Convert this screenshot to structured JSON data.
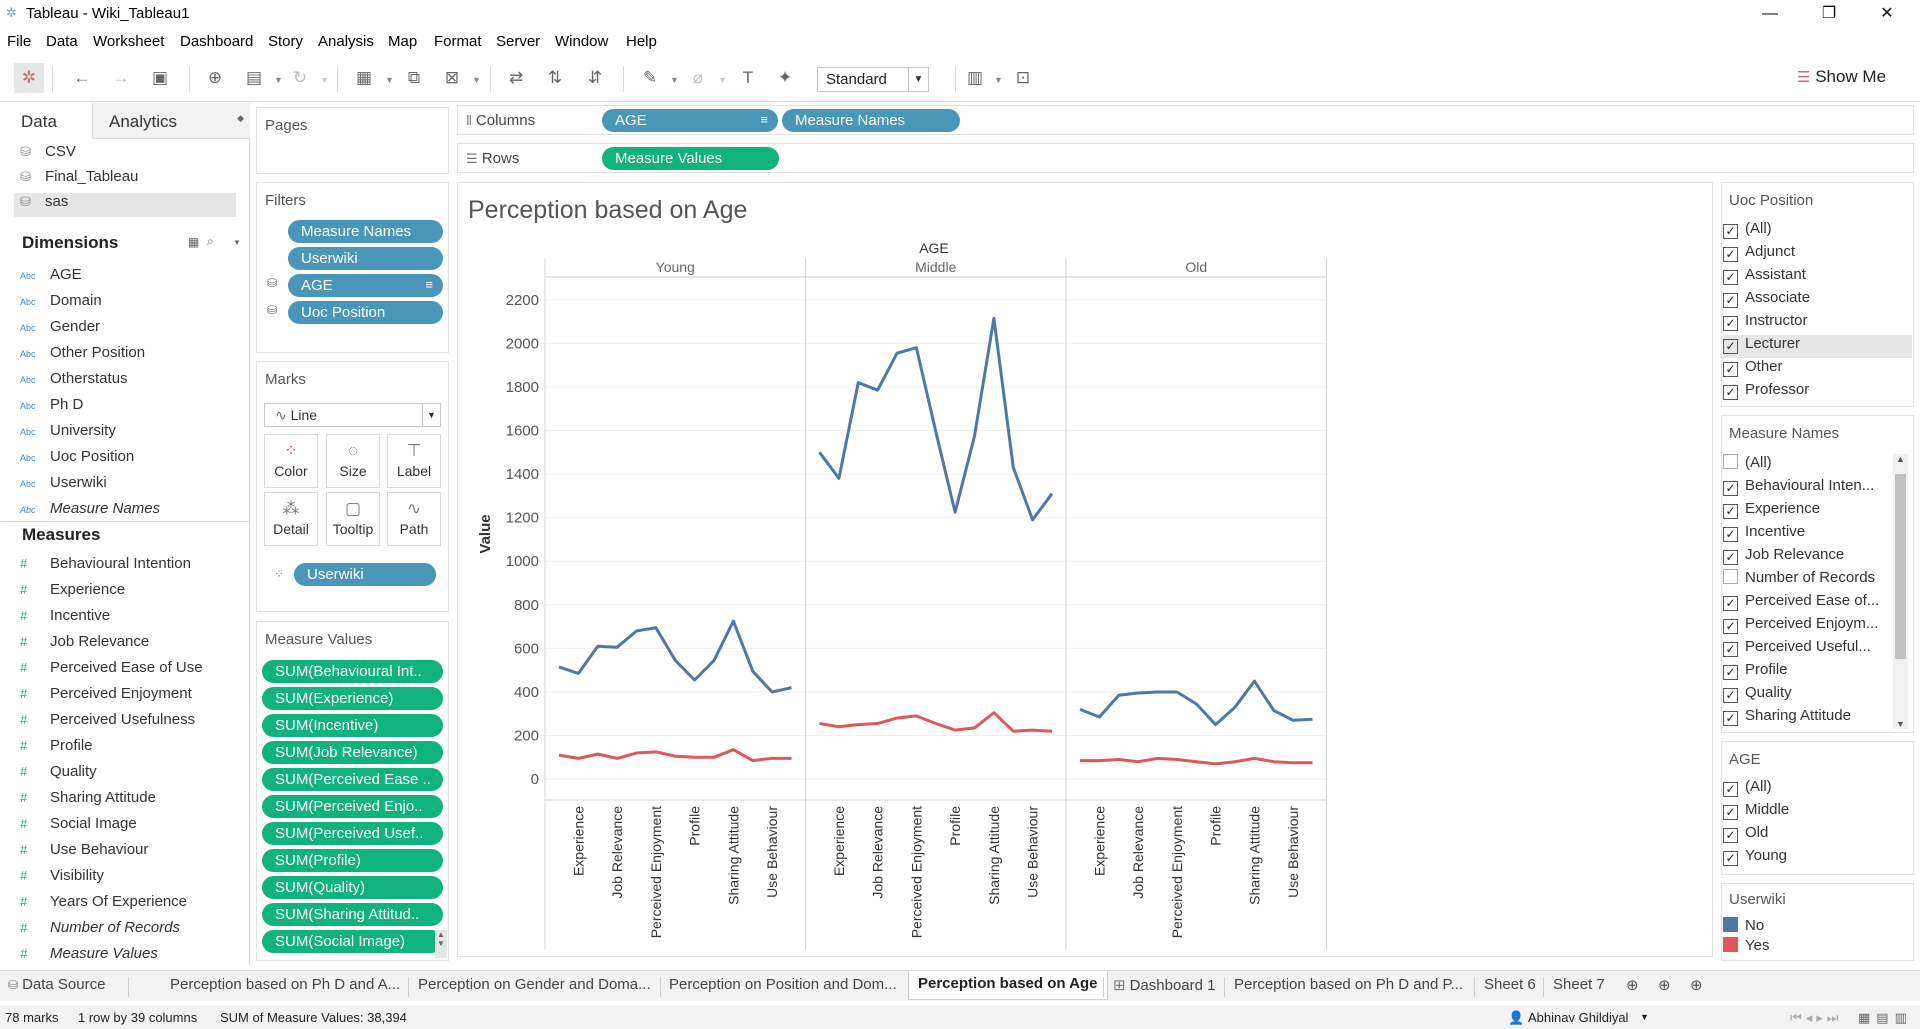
{
  "window": {
    "title": "Tableau - Wiki_Tableau1"
  },
  "menu": [
    "File",
    "Data",
    "Worksheet",
    "Dashboard",
    "Story",
    "Analysis",
    "Map",
    "Format",
    "Server",
    "Window",
    "Help"
  ],
  "toolbar": {
    "fit_select": "Standard",
    "show_me": "Show Me"
  },
  "data_pane": {
    "tabs": [
      "Data",
      "Analytics"
    ],
    "sources": [
      "CSV",
      "Final_Tableau",
      "sas"
    ],
    "dimensions_header": "Dimensions",
    "dimensions": [
      "AGE",
      "Domain",
      "Gender",
      "Other Position",
      "Otherstatus",
      "Ph D",
      "University",
      "Uoc Position",
      "Userwiki",
      "Measure Names"
    ],
    "dim_icon": "Abc",
    "measures_header": "Measures",
    "measures": [
      "Behavioural Intention",
      "Experience",
      "Incentive",
      "Job Relevance",
      "Perceived Ease of Use",
      "Perceived Enjoyment",
      "Perceived Usefulness",
      "Profile",
      "Quality",
      "Sharing Attitude",
      "Social Image",
      "Use Behaviour",
      "Visibility",
      "Years Of Experience",
      "Number of Records",
      "Measure Values"
    ]
  },
  "pages": {
    "header": "Pages"
  },
  "filters": {
    "header": "Filters",
    "pills": [
      "Measure Names",
      "Userwiki",
      "AGE",
      "Uoc Position"
    ]
  },
  "marks": {
    "header": "Marks",
    "type": "Line",
    "buttons": [
      "Color",
      "Size",
      "Label",
      "Detail",
      "Tooltip",
      "Path"
    ],
    "color_pill": "Userwiki"
  },
  "measure_values": {
    "header": "Measure Values",
    "pills": [
      "SUM(Behavioural Int..",
      "SUM(Experience)",
      "SUM(Incentive)",
      "SUM(Job Relevance)",
      "SUM(Perceived Ease ..",
      "SUM(Perceived Enjo..",
      "SUM(Perceived Usef..",
      "SUM(Profile)",
      "SUM(Quality)",
      "SUM(Sharing Attitud..",
      "SUM(Social Image)"
    ]
  },
  "shelves": {
    "columns_label": "Columns",
    "columns": [
      "AGE",
      "Measure Names"
    ],
    "rows_label": "Rows",
    "rows": [
      "Measure Values"
    ]
  },
  "view": {
    "title": "Perception based on Age"
  },
  "chart_data": {
    "type": "line",
    "title": "Perception based on Age",
    "column_header": "AGE",
    "panes": [
      "Young",
      "Middle",
      "Old"
    ],
    "ylabel": "Value",
    "ylim": [
      -50,
      2300
    ],
    "yticks": [
      0,
      200,
      400,
      600,
      800,
      1000,
      1200,
      1400,
      1600,
      1800,
      2000,
      2200
    ],
    "x_tick_labels": [
      "Experience",
      "Job Relevance",
      "Perceived Enjoyment",
      "Profile",
      "Sharing Attitude",
      "Use Behaviour"
    ],
    "points_per_pane": 13,
    "series": [
      {
        "name": "No",
        "color": "#4e79a7",
        "values": {
          "Young": [
            515,
            485,
            610,
            605,
            680,
            695,
            545,
            455,
            545,
            725,
            495,
            400,
            420
          ],
          "Middle": [
            1500,
            1380,
            1820,
            1785,
            1955,
            1980,
            1595,
            1225,
            1575,
            2115,
            1430,
            1190,
            1310
          ],
          "Old": [
            320,
            285,
            385,
            395,
            400,
            400,
            345,
            250,
            330,
            450,
            315,
            270,
            275
          ]
        }
      },
      {
        "name": "Yes",
        "color": "#e15759",
        "values": {
          "Young": [
            110,
            95,
            115,
            95,
            120,
            125,
            105,
            100,
            100,
            135,
            85,
            95,
            95
          ],
          "Middle": [
            255,
            240,
            250,
            255,
            280,
            290,
            255,
            225,
            235,
            305,
            220,
            225,
            220
          ],
          "Old": [
            85,
            85,
            90,
            80,
            95,
            90,
            80,
            70,
            80,
            95,
            80,
            75,
            75
          ]
        }
      }
    ]
  },
  "uoc_position": {
    "header": "Uoc Position",
    "items": [
      {
        "label": "(All)",
        "checked": true
      },
      {
        "label": "Adjunct",
        "checked": true
      },
      {
        "label": "Assistant",
        "checked": true
      },
      {
        "label": "Associate",
        "checked": true
      },
      {
        "label": "Instructor",
        "checked": true
      },
      {
        "label": "Lecturer",
        "checked": true
      },
      {
        "label": "Other",
        "checked": true
      },
      {
        "label": "Professor",
        "checked": true
      }
    ]
  },
  "measure_names_filter": {
    "header": "Measure Names",
    "items": [
      {
        "label": "(All)",
        "checked": false
      },
      {
        "label": "Behavioural Inten...",
        "checked": true
      },
      {
        "label": "Experience",
        "checked": true
      },
      {
        "label": "Incentive",
        "checked": true
      },
      {
        "label": "Job Relevance",
        "checked": true
      },
      {
        "label": "Number of Records",
        "checked": false
      },
      {
        "label": "Perceived Ease of...",
        "checked": true
      },
      {
        "label": "Perceived Enjoym...",
        "checked": true
      },
      {
        "label": "Perceived Useful...",
        "checked": true
      },
      {
        "label": "Profile",
        "checked": true
      },
      {
        "label": "Quality",
        "checked": true
      },
      {
        "label": "Sharing Attitude",
        "checked": true
      }
    ]
  },
  "age_filter": {
    "header": "AGE",
    "items": [
      {
        "label": "(All)",
        "checked": true
      },
      {
        "label": "Middle",
        "checked": true
      },
      {
        "label": "Old",
        "checked": true
      },
      {
        "label": "Young",
        "checked": true
      }
    ]
  },
  "userwiki_legend": {
    "header": "Userwiki",
    "items": [
      {
        "label": "No",
        "color": "#4e79a7"
      },
      {
        "label": "Yes",
        "color": "#e15759"
      }
    ]
  },
  "sheet_tabs": [
    "Data Source",
    "Perception based on Ph D and A...",
    "Perception on Gender and Doma...",
    "Perception on Position and Dom...",
    "Perception based on Age",
    "Dashboard 1",
    "Perception based on Ph D and P...",
    "Sheet 6",
    "Sheet 7"
  ],
  "active_tab": "Perception based on Age",
  "status": {
    "marks": "78 marks",
    "dims": "1 row by 39 columns",
    "sum": "SUM of Measure Values: 38,394",
    "user": "Abhinav Ghildiyal"
  }
}
